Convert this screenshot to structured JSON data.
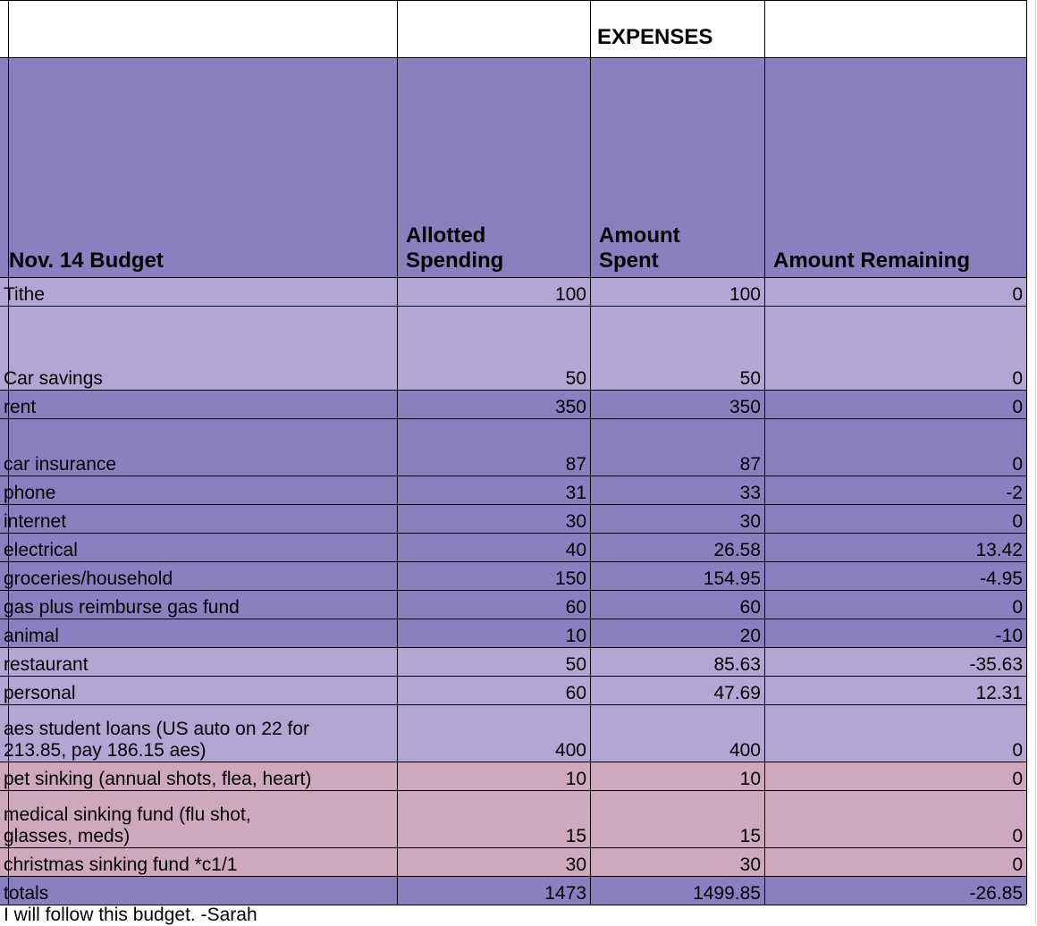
{
  "sheet": {
    "title": "EXPENSES",
    "colors": {
      "header_bg": "#8b7fbf",
      "dark_row": "#8b7fbf",
      "light_row": "#b3a6d4",
      "pink_row": "#cda8bf",
      "border": "#000000",
      "gridline": "#d9d9d9"
    },
    "headers": [
      "Nov. 14 Budget",
      "Allotted\nSpending",
      "Amount\nSpent",
      "Amount Remaining"
    ],
    "rows": [
      {
        "label": "Tithe",
        "allotted": "100",
        "spent": "100",
        "remaining": "0",
        "style": "light"
      },
      {
        "label": "Car savings",
        "allotted": "50",
        "spent": "50",
        "remaining": "0",
        "style": "light"
      },
      {
        "label": "rent",
        "allotted": "350",
        "spent": "350",
        "remaining": "0",
        "style": "dark"
      },
      {
        "label": "car insurance",
        "allotted": "87",
        "spent": "87",
        "remaining": "0",
        "style": "dark"
      },
      {
        "label": "phone",
        "allotted": "31",
        "spent": "33",
        "remaining": "-2",
        "style": "dark"
      },
      {
        "label": "internet",
        "allotted": "30",
        "spent": "30",
        "remaining": "0",
        "style": "dark"
      },
      {
        "label": "electrical",
        "allotted": "40",
        "spent": "26.58",
        "remaining": "13.42",
        "style": "dark"
      },
      {
        "label": "groceries/household",
        "allotted": "150",
        "spent": "154.95",
        "remaining": "-4.95",
        "style": "dark"
      },
      {
        "label": "gas plus reimburse gas fund",
        "allotted": "60",
        "spent": "60",
        "remaining": "0",
        "style": "dark"
      },
      {
        "label": "animal",
        "allotted": "10",
        "spent": "20",
        "remaining": "-10",
        "style": "dark"
      },
      {
        "label": "restaurant",
        "allotted": "50",
        "spent": "85.63",
        "remaining": "-35.63",
        "style": "light"
      },
      {
        "label": "personal",
        "allotted": "60",
        "spent": "47.69",
        "remaining": "12.31",
        "style": "light"
      },
      {
        "label": "aes student loans (US auto on 22 for\n213.85, pay 186.15 aes)",
        "allotted": "400",
        "spent": "400",
        "remaining": "0",
        "style": "light"
      },
      {
        "label": "pet sinking (annual shots, flea, heart)",
        "allotted": "10",
        "spent": "10",
        "remaining": "0",
        "style": "pink"
      },
      {
        "label": "medical sinking fund (flu shot,\nglasses, meds)",
        "allotted": "15",
        "spent": "15",
        "remaining": "0",
        "style": "pink"
      },
      {
        "label": "christmas sinking fund *c1/1",
        "allotted": "30",
        "spent": "30",
        "remaining": "0",
        "style": "pink"
      },
      {
        "label": "totals",
        "allotted": "1473",
        "spent": "1499.85",
        "remaining": "-26.85",
        "style": "dark"
      }
    ],
    "note": "I will follow this budget. -Sarah"
  }
}
